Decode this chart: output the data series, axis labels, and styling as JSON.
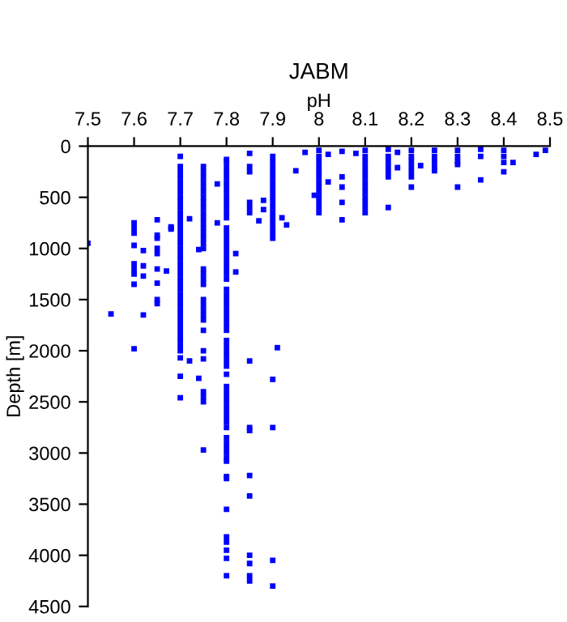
{
  "chart_data": {
    "type": "scatter",
    "title": "JABM",
    "xlabel": "pH",
    "ylabel": "Depth [m]",
    "xlim": [
      7.5,
      8.5
    ],
    "ylim": [
      4500,
      0
    ],
    "xticks": [
      7.5,
      7.6,
      7.7,
      7.8,
      7.9,
      8,
      8.1,
      8.2,
      8.3,
      8.4,
      8.5
    ],
    "yticks": [
      0,
      500,
      1000,
      1500,
      2000,
      2500,
      3000,
      3500,
      4000,
      4500
    ],
    "grid": false,
    "marker": "square",
    "legend": false,
    "series": [
      {
        "color": "#0000ff",
        "x": [
          7.5,
          7.55,
          7.6,
          7.6,
          7.6,
          7.6,
          7.6,
          7.6,
          7.6,
          7.6,
          7.6,
          7.62,
          7.62,
          7.62,
          7.62,
          7.65,
          7.65,
          7.65,
          7.65,
          7.65,
          7.65,
          7.65,
          7.65,
          7.65,
          7.67,
          7.68,
          7.68,
          7.68,
          7.72,
          7.72,
          7.74,
          7.74,
          7.78,
          7.78,
          7.82,
          7.82,
          7.85,
          7.85,
          7.85,
          7.85,
          7.85,
          7.85,
          7.85,
          7.85,
          7.85,
          7.85,
          7.85,
          7.85,
          7.85,
          7.85,
          7.85,
          7.87,
          7.88,
          7.88,
          7.91,
          7.9,
          7.9,
          7.9,
          7.9,
          7.92,
          7.93,
          7.95,
          7.97,
          7.99,
          8.02,
          8.02,
          8.05,
          8.05,
          8.05,
          8.05,
          8.05,
          8.08,
          8.17,
          8.17,
          8.22,
          8.42,
          8.47,
          8.49
        ],
        "values": [
          950,
          1640,
          750,
          800,
          850,
          970,
          1150,
          1200,
          1250,
          1350,
          1980,
          1020,
          1170,
          1270,
          1650,
          720,
          870,
          900,
          1000,
          1050,
          1200,
          1340,
          1500,
          1540,
          1220,
          790,
          800,
          810,
          710,
          2100,
          1010,
          2270,
          370,
          750,
          1050,
          1230,
          70,
          200,
          250,
          550,
          600,
          650,
          2100,
          2750,
          2780,
          3220,
          3420,
          4000,
          4080,
          4200,
          4250,
          730,
          530,
          620,
          1970,
          2280,
          2750,
          4050,
          4300,
          700,
          770,
          240,
          60,
          480,
          80,
          350,
          50,
          300,
          400,
          550,
          720,
          70,
          60,
          210,
          190,
          160,
          80,
          40
        ]
      },
      {
        "color": "#0000ff",
        "x": [
          7.7,
          7.7,
          7.7,
          7.7,
          7.7,
          7.7,
          7.7,
          7.7,
          7.7,
          7.7,
          7.7,
          7.7,
          7.7,
          7.7,
          7.7,
          7.7,
          7.7,
          7.7,
          7.7,
          7.7,
          7.7,
          7.7,
          7.7,
          7.7,
          7.7,
          7.7,
          7.7,
          7.7,
          7.7,
          7.7,
          7.7,
          7.7,
          7.7,
          7.7,
          7.7,
          7.7,
          7.7,
          7.7,
          7.7,
          7.7,
          7.7
        ],
        "values": [
          100,
          200,
          250,
          300,
          350,
          400,
          450,
          500,
          550,
          600,
          650,
          700,
          750,
          800,
          850,
          900,
          950,
          1000,
          1050,
          1100,
          1150,
          1200,
          1250,
          1300,
          1350,
          1400,
          1450,
          1500,
          1550,
          1600,
          1650,
          1700,
          1750,
          1800,
          1850,
          1900,
          1950,
          2000,
          2070,
          2250,
          2460
        ]
      },
      {
        "color": "#0000ff",
        "x": [
          7.75,
          7.75,
          7.75,
          7.75,
          7.75,
          7.75,
          7.75,
          7.75,
          7.75,
          7.75,
          7.75,
          7.75,
          7.75,
          7.75,
          7.75,
          7.75,
          7.75,
          7.75,
          7.75,
          7.75,
          7.75,
          7.75,
          7.75,
          7.75,
          7.75,
          7.75,
          7.75,
          7.75,
          7.75,
          7.75,
          7.75,
          7.75,
          7.75
        ],
        "values": [
          200,
          250,
          300,
          350,
          400,
          450,
          500,
          550,
          600,
          650,
          700,
          750,
          800,
          850,
          900,
          950,
          1000,
          1200,
          1250,
          1300,
          1350,
          1500,
          1550,
          1600,
          1650,
          1700,
          1800,
          2000,
          2080,
          2400,
          2450,
          2500,
          2970
        ]
      },
      {
        "color": "#0000ff",
        "x": [
          7.8,
          7.8,
          7.8,
          7.8,
          7.8,
          7.8,
          7.8,
          7.8,
          7.8,
          7.8,
          7.8,
          7.8,
          7.8,
          7.8,
          7.8,
          7.8,
          7.8,
          7.8,
          7.8,
          7.8,
          7.8,
          7.8,
          7.8,
          7.8,
          7.8,
          7.8,
          7.8,
          7.8,
          7.8,
          7.8,
          7.8,
          7.8,
          7.8,
          7.8,
          7.8,
          7.8,
          7.8,
          7.8,
          7.8,
          7.8,
          7.8,
          7.8,
          7.8,
          7.8,
          7.8,
          7.8,
          7.8,
          7.8,
          7.8,
          7.8,
          7.8,
          7.8,
          7.8,
          7.8,
          7.8,
          7.8,
          7.8,
          7.8,
          7.8,
          7.8,
          7.8,
          7.8,
          7.8
        ],
        "values": [
          130,
          150,
          200,
          250,
          300,
          350,
          400,
          450,
          500,
          550,
          600,
          650,
          700,
          800,
          850,
          900,
          950,
          1000,
          1050,
          1100,
          1150,
          1200,
          1250,
          1300,
          1400,
          1450,
          1500,
          1550,
          1600,
          1650,
          1700,
          1750,
          1800,
          1900,
          1950,
          2000,
          2050,
          2100,
          2150,
          2230,
          2350,
          2400,
          2450,
          2500,
          2550,
          2600,
          2650,
          2700,
          2750,
          2850,
          2900,
          2950,
          3000,
          3050,
          3080,
          3230,
          3250,
          3550,
          3820,
          3870,
          3950,
          4030,
          4200
        ]
      },
      {
        "color": "#0000ff",
        "x": [
          7.9,
          7.9,
          7.9,
          7.9,
          7.9,
          7.9,
          7.9,
          7.9,
          7.9,
          7.9,
          7.9,
          7.9,
          7.9,
          7.9,
          7.9,
          7.9,
          7.9,
          8,
          8,
          8,
          8,
          8,
          8,
          8,
          8,
          8,
          8,
          8,
          8,
          8
        ],
        "values": [
          100,
          150,
          200,
          250,
          300,
          350,
          400,
          450,
          500,
          550,
          600,
          650,
          700,
          750,
          800,
          850,
          900,
          40,
          100,
          150,
          200,
          250,
          300,
          350,
          400,
          450,
          500,
          550,
          600,
          650
        ]
      },
      {
        "color": "#0000ff",
        "x": [
          8.1,
          8.1,
          8.1,
          8.1,
          8.1,
          8.1,
          8.1,
          8.1,
          8.1,
          8.1,
          8.1,
          8.1,
          8.1,
          8.15,
          8.15,
          8.15,
          8.15,
          8.15,
          8.15,
          8.15,
          8.2,
          8.2,
          8.2,
          8.2,
          8.2,
          8.2,
          8.2,
          8.25,
          8.25,
          8.25,
          8.25,
          8.25,
          8.3,
          8.3,
          8.3,
          8.3,
          8.3,
          8.35,
          8.35,
          8.35,
          8.4,
          8.4,
          8.4,
          8.4
        ],
        "values": [
          40,
          100,
          150,
          200,
          250,
          300,
          350,
          400,
          450,
          500,
          550,
          600,
          650,
          30,
          100,
          150,
          200,
          250,
          300,
          600,
          40,
          100,
          150,
          200,
          250,
          300,
          400,
          40,
          100,
          150,
          200,
          240,
          40,
          100,
          150,
          180,
          400,
          30,
          100,
          330,
          40,
          100,
          160,
          250
        ]
      }
    ]
  }
}
